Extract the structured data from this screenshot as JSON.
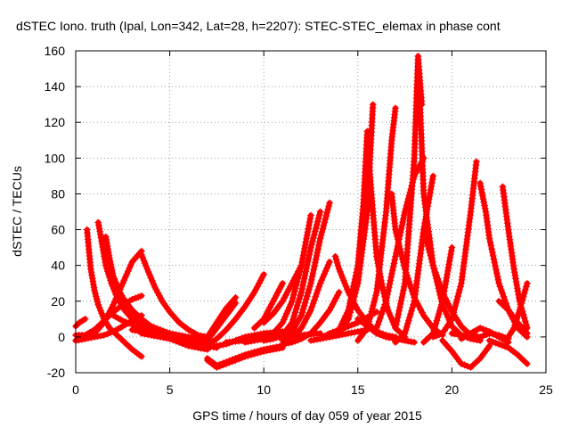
{
  "chart_data": {
    "type": "scatter",
    "title": "dSTEC Iono. truth (Ipal, Lon=342, Lat=28, h=2207): STEC-STEC_elemax in phase cont",
    "xlabel": "GPS time / hours of day 059 of year 2015",
    "ylabel": "dSTEC  / TECUs",
    "xlim": [
      0,
      25
    ],
    "ylim": [
      -20,
      160
    ],
    "xticks": [
      0,
      5,
      10,
      15,
      20,
      25
    ],
    "yticks": [
      -20,
      0,
      20,
      40,
      60,
      80,
      100,
      120,
      140,
      160
    ],
    "grid": true,
    "marker": "+",
    "color": "#ff0000",
    "series": [
      {
        "x": [
          0.0,
          0.2,
          0.5
        ],
        "y": [
          6,
          8,
          10
        ]
      },
      {
        "x": [
          0.0,
          0.5,
          1.0,
          1.5,
          2.0,
          2.5,
          3.0,
          3.5
        ],
        "y": [
          -2,
          -1,
          0,
          1,
          3,
          6,
          9,
          12
        ]
      },
      {
        "x": [
          0.6,
          0.8,
          1.0,
          1.2,
          1.5,
          1.8,
          2.2,
          2.6,
          3.0,
          3.5
        ],
        "y": [
          60,
          38,
          26,
          18,
          10,
          5,
          1,
          -3,
          -7,
          -11
        ]
      },
      {
        "x": [
          1.2,
          1.4,
          1.6,
          1.9,
          2.2,
          2.6,
          3.0,
          3.5,
          4.0,
          4.5
        ],
        "y": [
          64,
          52,
          40,
          30,
          22,
          15,
          10,
          7,
          5,
          4
        ]
      },
      {
        "x": [
          1.6,
          1.8,
          2.0,
          2.3,
          2.6,
          3.0,
          3.5,
          4.0,
          4.5,
          5.0,
          5.5
        ],
        "y": [
          56,
          44,
          34,
          26,
          20,
          14,
          9,
          6,
          4,
          2,
          0
        ]
      },
      {
        "x": [
          0.0,
          0.5,
          1.0,
          1.5,
          2.0,
          2.5,
          3.0,
          3.5
        ],
        "y": [
          1,
          1,
          4,
          9,
          14,
          18,
          21,
          23
        ]
      },
      {
        "x": [
          0.0,
          0.5,
          1.0,
          1.5,
          2.0,
          2.5,
          3.0,
          3.5
        ],
        "y": [
          -2,
          -1,
          2,
          8,
          18,
          30,
          42,
          48
        ]
      },
      {
        "x": [
          3.5,
          3.8,
          4.2,
          4.6,
          5.0,
          5.5,
          6.0,
          6.5,
          7.0
        ],
        "y": [
          46,
          38,
          28,
          20,
          14,
          8,
          4,
          1,
          0
        ]
      },
      {
        "x": [
          2.0,
          2.5,
          3.0,
          3.5,
          4.0,
          4.5,
          5.0,
          5.5,
          6.0,
          6.5
        ],
        "y": [
          30,
          22,
          15,
          10,
          6,
          3,
          1,
          0,
          -1,
          -2
        ]
      },
      {
        "x": [
          2.0,
          2.5,
          3.0,
          3.5,
          4.0,
          4.5,
          5.0,
          5.5,
          6.0,
          6.5,
          7.0
        ],
        "y": [
          12,
          9,
          7,
          5,
          4,
          3,
          2,
          1,
          0,
          -1,
          -2
        ]
      },
      {
        "x": [
          3.0,
          3.5,
          4.0,
          4.5,
          5.0,
          5.5,
          6.0,
          6.5,
          7.0
        ],
        "y": [
          4,
          3,
          2,
          1,
          -1,
          -3,
          -5,
          -6,
          -7
        ]
      },
      {
        "x": [
          3.5,
          4.0,
          4.5,
          5.0,
          5.5,
          6.0,
          6.5,
          7.0,
          7.5
        ],
        "y": [
          2,
          1,
          0,
          -1,
          -2,
          -3,
          -4,
          -5,
          -6
        ]
      },
      {
        "x": [
          6.5,
          7.0,
          7.5,
          8.0,
          8.5
        ],
        "y": [
          -2,
          0,
          8,
          16,
          22
        ]
      },
      {
        "x": [
          6.5,
          7.0,
          7.5,
          8.0,
          8.5
        ],
        "y": [
          -4,
          -2,
          5,
          12,
          19
        ]
      },
      {
        "x": [
          7.0,
          7.5,
          8.0,
          8.5,
          9.0,
          9.5,
          10.0
        ],
        "y": [
          -5,
          -1,
          4,
          10,
          17,
          25,
          35
        ]
      },
      {
        "x": [
          7.0,
          7.5,
          8.0,
          9.0,
          10.0,
          11.0
        ],
        "y": [
          -12,
          -16,
          -14,
          -10,
          -7,
          -5
        ]
      },
      {
        "x": [
          7.0,
          7.5,
          8.0,
          9.0,
          10.0,
          11.0
        ],
        "y": [
          -13,
          -17,
          -15,
          -11,
          -8,
          -6
        ]
      },
      {
        "x": [
          6.0,
          7.0,
          8.0,
          9.0,
          10.0,
          11.0
        ],
        "y": [
          -4,
          -6,
          -4,
          0,
          2,
          3
        ]
      },
      {
        "x": [
          8.0,
          9.0,
          10.0,
          11.0,
          12.0,
          13.0
        ],
        "y": [
          -3,
          -2,
          -1,
          0,
          1,
          2
        ]
      },
      {
        "x": [
          9.5,
          10.0,
          10.5,
          11.0
        ],
        "y": [
          5,
          10,
          20,
          30
        ]
      },
      {
        "x": [
          10.0,
          10.5,
          11.0,
          11.5,
          12.0
        ],
        "y": [
          8,
          13,
          20,
          30,
          40
        ]
      },
      {
        "x": [
          9.0,
          9.5,
          10.0,
          10.5,
          11.0,
          11.5,
          12.0,
          12.5
        ],
        "y": [
          -3,
          -2,
          -1,
          2,
          8,
          20,
          40,
          68
        ]
      },
      {
        "x": [
          10.0,
          10.5,
          11.0,
          11.5,
          12.0,
          12.5,
          13.0
        ],
        "y": [
          -2,
          -1,
          1,
          8,
          25,
          50,
          70
        ]
      },
      {
        "x": [
          11.0,
          11.5,
          12.0,
          12.5,
          13.0,
          13.5
        ],
        "y": [
          0,
          3,
          12,
          30,
          55,
          75
        ]
      },
      {
        "x": [
          11.0,
          11.5,
          12.0,
          12.5,
          13.0,
          13.5
        ],
        "y": [
          -2,
          0,
          5,
          15,
          30,
          42
        ]
      },
      {
        "x": [
          11.0,
          11.5,
          12.0,
          12.5,
          13.0,
          13.5,
          14.0
        ],
        "y": [
          -4,
          -3,
          -1,
          2,
          8,
          15,
          25
        ]
      },
      {
        "x": [
          13.0,
          13.5,
          14.0,
          14.5,
          15.0,
          15.5,
          16.0
        ],
        "y": [
          -1,
          2,
          4,
          6,
          8,
          11,
          14
        ]
      },
      {
        "x": [
          12.5,
          13.0,
          13.5,
          14.0,
          14.5,
          15.0,
          15.5
        ],
        "y": [
          -2,
          -1,
          0,
          1,
          2,
          3,
          4
        ]
      },
      {
        "x": [
          13.8,
          14.0,
          14.5,
          15.0,
          15.5,
          16.0,
          16.5,
          17.0
        ],
        "y": [
          45,
          38,
          25,
          15,
          8,
          3,
          1,
          0
        ]
      },
      {
        "x": [
          13.5,
          14.0,
          14.5,
          15.0,
          15.3,
          15.5
        ],
        "y": [
          0,
          4,
          15,
          40,
          75,
          115
        ]
      },
      {
        "x": [
          14.0,
          14.5,
          15.0,
          15.5,
          15.8
        ],
        "y": [
          2,
          10,
          30,
          70,
          130
        ]
      },
      {
        "x": [
          15.5,
          15.8,
          16.0,
          16.3,
          16.6,
          17.0,
          17.5
        ],
        "y": [
          110,
          70,
          45,
          28,
          15,
          5,
          0
        ]
      },
      {
        "x": [
          15.0,
          15.5,
          16.0,
          16.5,
          17.0,
          17.5,
          18.0
        ],
        "y": [
          10,
          6,
          2,
          0,
          -1,
          -2,
          -3
        ]
      },
      {
        "x": [
          15.0,
          15.5,
          16.0,
          16.5,
          16.8,
          17.0
        ],
        "y": [
          -2,
          5,
          25,
          70,
          110,
          128
        ]
      },
      {
        "x": [
          16.0,
          16.5,
          17.0,
          17.5,
          18.0,
          18.5
        ],
        "y": [
          5,
          20,
          45,
          70,
          90,
          100
        ]
      },
      {
        "x": [
          16.8,
          17.0,
          17.5,
          18.0,
          18.5,
          19.0,
          19.5
        ],
        "y": [
          80,
          60,
          38,
          22,
          12,
          5,
          1
        ]
      },
      {
        "x": [
          17.0,
          17.5,
          18.0,
          18.2,
          18.4
        ],
        "y": [
          5,
          30,
          100,
          157,
          130
        ]
      },
      {
        "x": [
          18.2,
          18.5,
          19.0,
          19.5,
          20.0,
          20.5,
          21.0,
          21.5
        ],
        "y": [
          157,
          80,
          40,
          18,
          6,
          1,
          -1,
          -2
        ]
      },
      {
        "x": [
          17.0,
          17.5,
          18.0,
          18.5,
          19.0
        ],
        "y": [
          -3,
          2,
          20,
          60,
          90
        ]
      },
      {
        "x": [
          18.5,
          19.0,
          19.5,
          20.0,
          20.5,
          21.0,
          21.5
        ],
        "y": [
          60,
          40,
          25,
          14,
          6,
          1,
          -2
        ]
      },
      {
        "x": [
          18.5,
          19.0,
          19.5,
          20.0
        ],
        "y": [
          -3,
          2,
          20,
          50
        ]
      },
      {
        "x": [
          19.0,
          19.5,
          20.0,
          20.5,
          21.0,
          21.3
        ],
        "y": [
          0,
          2,
          10,
          30,
          70,
          98
        ]
      },
      {
        "x": [
          19.5,
          20.0,
          20.5,
          21.0,
          21.5,
          22.0
        ],
        "y": [
          -2,
          -8,
          -15,
          -17,
          -12,
          -5
        ]
      },
      {
        "x": [
          20.5,
          21.0,
          21.5,
          22.0,
          22.5,
          23.0
        ],
        "y": [
          -1,
          2,
          5,
          3,
          0,
          -3
        ]
      },
      {
        "x": [
          21.5,
          21.8,
          22.0,
          22.5,
          23.0,
          23.5,
          24.0
        ],
        "y": [
          86,
          70,
          55,
          30,
          15,
          5,
          0
        ]
      },
      {
        "x": [
          22.7,
          23.0,
          23.3,
          23.6,
          24.0
        ],
        "y": [
          84,
          60,
          38,
          20,
          5
        ]
      },
      {
        "x": [
          22.0,
          22.5,
          23.0,
          23.5,
          24.0
        ],
        "y": [
          -2,
          -4,
          -6,
          -10,
          -15
        ]
      },
      {
        "x": [
          22.5,
          23.0,
          23.5,
          24.0
        ],
        "y": [
          20,
          15,
          8,
          2
        ]
      },
      {
        "x": [
          23.0,
          23.3,
          23.6,
          24.0
        ],
        "y": [
          0,
          5,
          15,
          30
        ]
      },
      {
        "x": [
          20.0,
          20.5,
          21.0,
          21.5,
          22.0,
          22.5,
          23.0
        ],
        "y": [
          2,
          1,
          1,
          0,
          2,
          1,
          -1
        ]
      }
    ]
  }
}
